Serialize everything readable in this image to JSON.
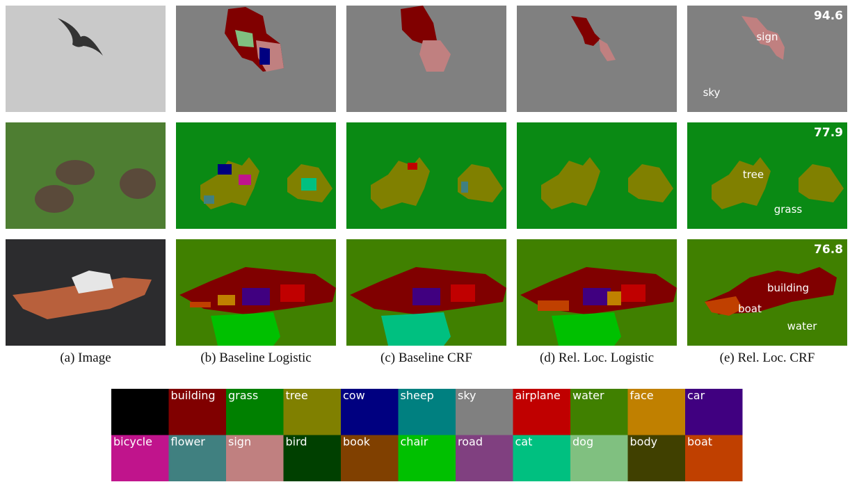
{
  "columns": [
    "(a) Image",
    "(b) Baseline Logistic",
    "(c) Baseline CRF",
    "(d) Rel. Loc. Logistic",
    "(e) Rel. Loc. CRF"
  ],
  "rows": [
    {
      "score": 94.6,
      "labels": [
        "sign",
        "sky"
      ]
    },
    {
      "score": 77.9,
      "labels": [
        "tree",
        "grass"
      ]
    },
    {
      "score": 76.8,
      "labels": [
        "building",
        "boat",
        "water"
      ]
    }
  ],
  "legend": [
    {
      "color": "#000000"
    },
    {
      "name": "building",
      "color": "#800000"
    },
    {
      "name": "grass",
      "color": "#008000"
    },
    {
      "name": "tree",
      "color": "#808000"
    },
    {
      "name": "cow",
      "color": "#000080"
    },
    {
      "name": "sheep",
      "color": "#008080"
    },
    {
      "name": "sky",
      "color": "#808080"
    },
    {
      "name": "airplane",
      "color": "#c00000"
    },
    {
      "name": "water",
      "color": "#408000"
    },
    {
      "name": "face",
      "color": "#c08000"
    },
    {
      "name": "car",
      "color": "#400080"
    },
    {
      "name": "bicycle",
      "color": "#c0148c"
    },
    {
      "name": "flower",
      "color": "#408080"
    },
    {
      "name": "sign",
      "color": "#c08080"
    },
    {
      "name": "bird",
      "color": "#004000"
    },
    {
      "name": "book",
      "color": "#804000"
    },
    {
      "name": "chair",
      "color": "#00c000"
    },
    {
      "name": "road",
      "color": "#804080"
    },
    {
      "name": "cat",
      "color": "#00c080"
    },
    {
      "name": "dog",
      "color": "#80c080"
    },
    {
      "name": "body",
      "color": "#404000"
    },
    {
      "name": "boat",
      "color": "#c04000"
    }
  ]
}
